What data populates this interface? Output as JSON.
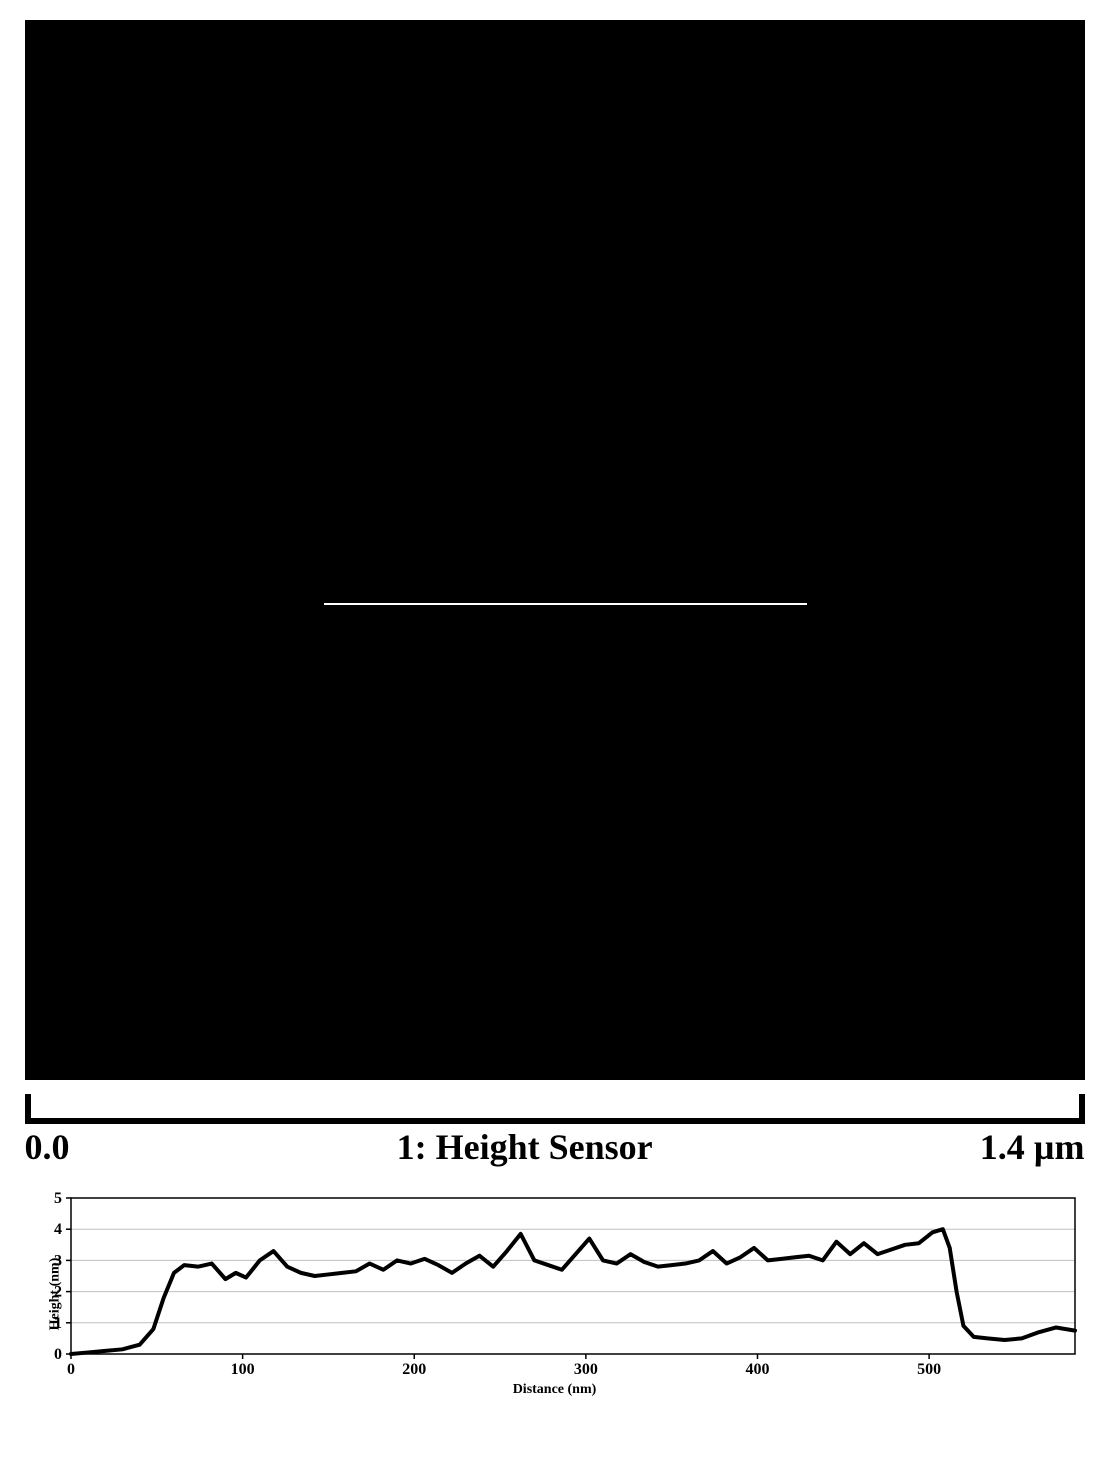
{
  "image_panel": {
    "border_color": "#000000",
    "background_color": "#000000",
    "profile_line": {
      "left_pct": 28,
      "top_pct": 55,
      "width_pct": 46,
      "color": "#ffffff"
    }
  },
  "scale_bar": {
    "left_label": "0.0",
    "center_label": "1: Height Sensor",
    "right_label": "1.4 µm",
    "color": "#000000"
  },
  "profile_chart": {
    "type": "line",
    "xlabel": "Distance (nm)",
    "ylabel": "Height (nm)",
    "xlim": [
      0,
      585
    ],
    "ylim": [
      0,
      5
    ],
    "xtick_step": 100,
    "ytick_step": 1,
    "xticks": [
      0,
      100,
      200,
      300,
      400,
      500
    ],
    "yticks": [
      0,
      1,
      2,
      3,
      4,
      5
    ],
    "line_color": "#000000",
    "line_width": 4,
    "background_color": "#ffffff",
    "frame_color": "#000000",
    "grid_line_color": "#bfbfbf",
    "grid_line_width": 1,
    "label_fontsize": 14,
    "tick_fontsize": 16,
    "data": [
      {
        "x": 0,
        "y": 0.0
      },
      {
        "x": 10,
        "y": 0.05
      },
      {
        "x": 20,
        "y": 0.1
      },
      {
        "x": 30,
        "y": 0.15
      },
      {
        "x": 40,
        "y": 0.3
      },
      {
        "x": 48,
        "y": 0.8
      },
      {
        "x": 54,
        "y": 1.8
      },
      {
        "x": 60,
        "y": 2.6
      },
      {
        "x": 66,
        "y": 2.85
      },
      {
        "x": 74,
        "y": 2.8
      },
      {
        "x": 82,
        "y": 2.9
      },
      {
        "x": 90,
        "y": 2.4
      },
      {
        "x": 96,
        "y": 2.6
      },
      {
        "x": 102,
        "y": 2.45
      },
      {
        "x": 110,
        "y": 3.0
      },
      {
        "x": 118,
        "y": 3.3
      },
      {
        "x": 126,
        "y": 2.8
      },
      {
        "x": 134,
        "y": 2.6
      },
      {
        "x": 142,
        "y": 2.5
      },
      {
        "x": 150,
        "y": 2.55
      },
      {
        "x": 158,
        "y": 2.6
      },
      {
        "x": 166,
        "y": 2.65
      },
      {
        "x": 174,
        "y": 2.9
      },
      {
        "x": 182,
        "y": 2.7
      },
      {
        "x": 190,
        "y": 3.0
      },
      {
        "x": 198,
        "y": 2.9
      },
      {
        "x": 206,
        "y": 3.05
      },
      {
        "x": 214,
        "y": 2.85
      },
      {
        "x": 222,
        "y": 2.6
      },
      {
        "x": 230,
        "y": 2.9
      },
      {
        "x": 238,
        "y": 3.15
      },
      {
        "x": 246,
        "y": 2.8
      },
      {
        "x": 254,
        "y": 3.3
      },
      {
        "x": 262,
        "y": 3.85
      },
      {
        "x": 270,
        "y": 3.0
      },
      {
        "x": 278,
        "y": 2.85
      },
      {
        "x": 286,
        "y": 2.7
      },
      {
        "x": 294,
        "y": 3.2
      },
      {
        "x": 302,
        "y": 3.7
      },
      {
        "x": 310,
        "y": 3.0
      },
      {
        "x": 318,
        "y": 2.9
      },
      {
        "x": 326,
        "y": 3.2
      },
      {
        "x": 334,
        "y": 2.95
      },
      {
        "x": 342,
        "y": 2.8
      },
      {
        "x": 350,
        "y": 2.85
      },
      {
        "x": 358,
        "y": 2.9
      },
      {
        "x": 366,
        "y": 3.0
      },
      {
        "x": 374,
        "y": 3.3
      },
      {
        "x": 382,
        "y": 2.9
      },
      {
        "x": 390,
        "y": 3.1
      },
      {
        "x": 398,
        "y": 3.4
      },
      {
        "x": 406,
        "y": 3.0
      },
      {
        "x": 414,
        "y": 3.05
      },
      {
        "x": 422,
        "y": 3.1
      },
      {
        "x": 430,
        "y": 3.15
      },
      {
        "x": 438,
        "y": 3.0
      },
      {
        "x": 446,
        "y": 3.6
      },
      {
        "x": 454,
        "y": 3.2
      },
      {
        "x": 462,
        "y": 3.55
      },
      {
        "x": 470,
        "y": 3.2
      },
      {
        "x": 478,
        "y": 3.35
      },
      {
        "x": 486,
        "y": 3.5
      },
      {
        "x": 494,
        "y": 3.55
      },
      {
        "x": 502,
        "y": 3.9
      },
      {
        "x": 508,
        "y": 4.0
      },
      {
        "x": 512,
        "y": 3.4
      },
      {
        "x": 516,
        "y": 2.0
      },
      {
        "x": 520,
        "y": 0.9
      },
      {
        "x": 526,
        "y": 0.55
      },
      {
        "x": 534,
        "y": 0.5
      },
      {
        "x": 544,
        "y": 0.45
      },
      {
        "x": 554,
        "y": 0.5
      },
      {
        "x": 564,
        "y": 0.7
      },
      {
        "x": 574,
        "y": 0.85
      },
      {
        "x": 585,
        "y": 0.75
      }
    ]
  }
}
